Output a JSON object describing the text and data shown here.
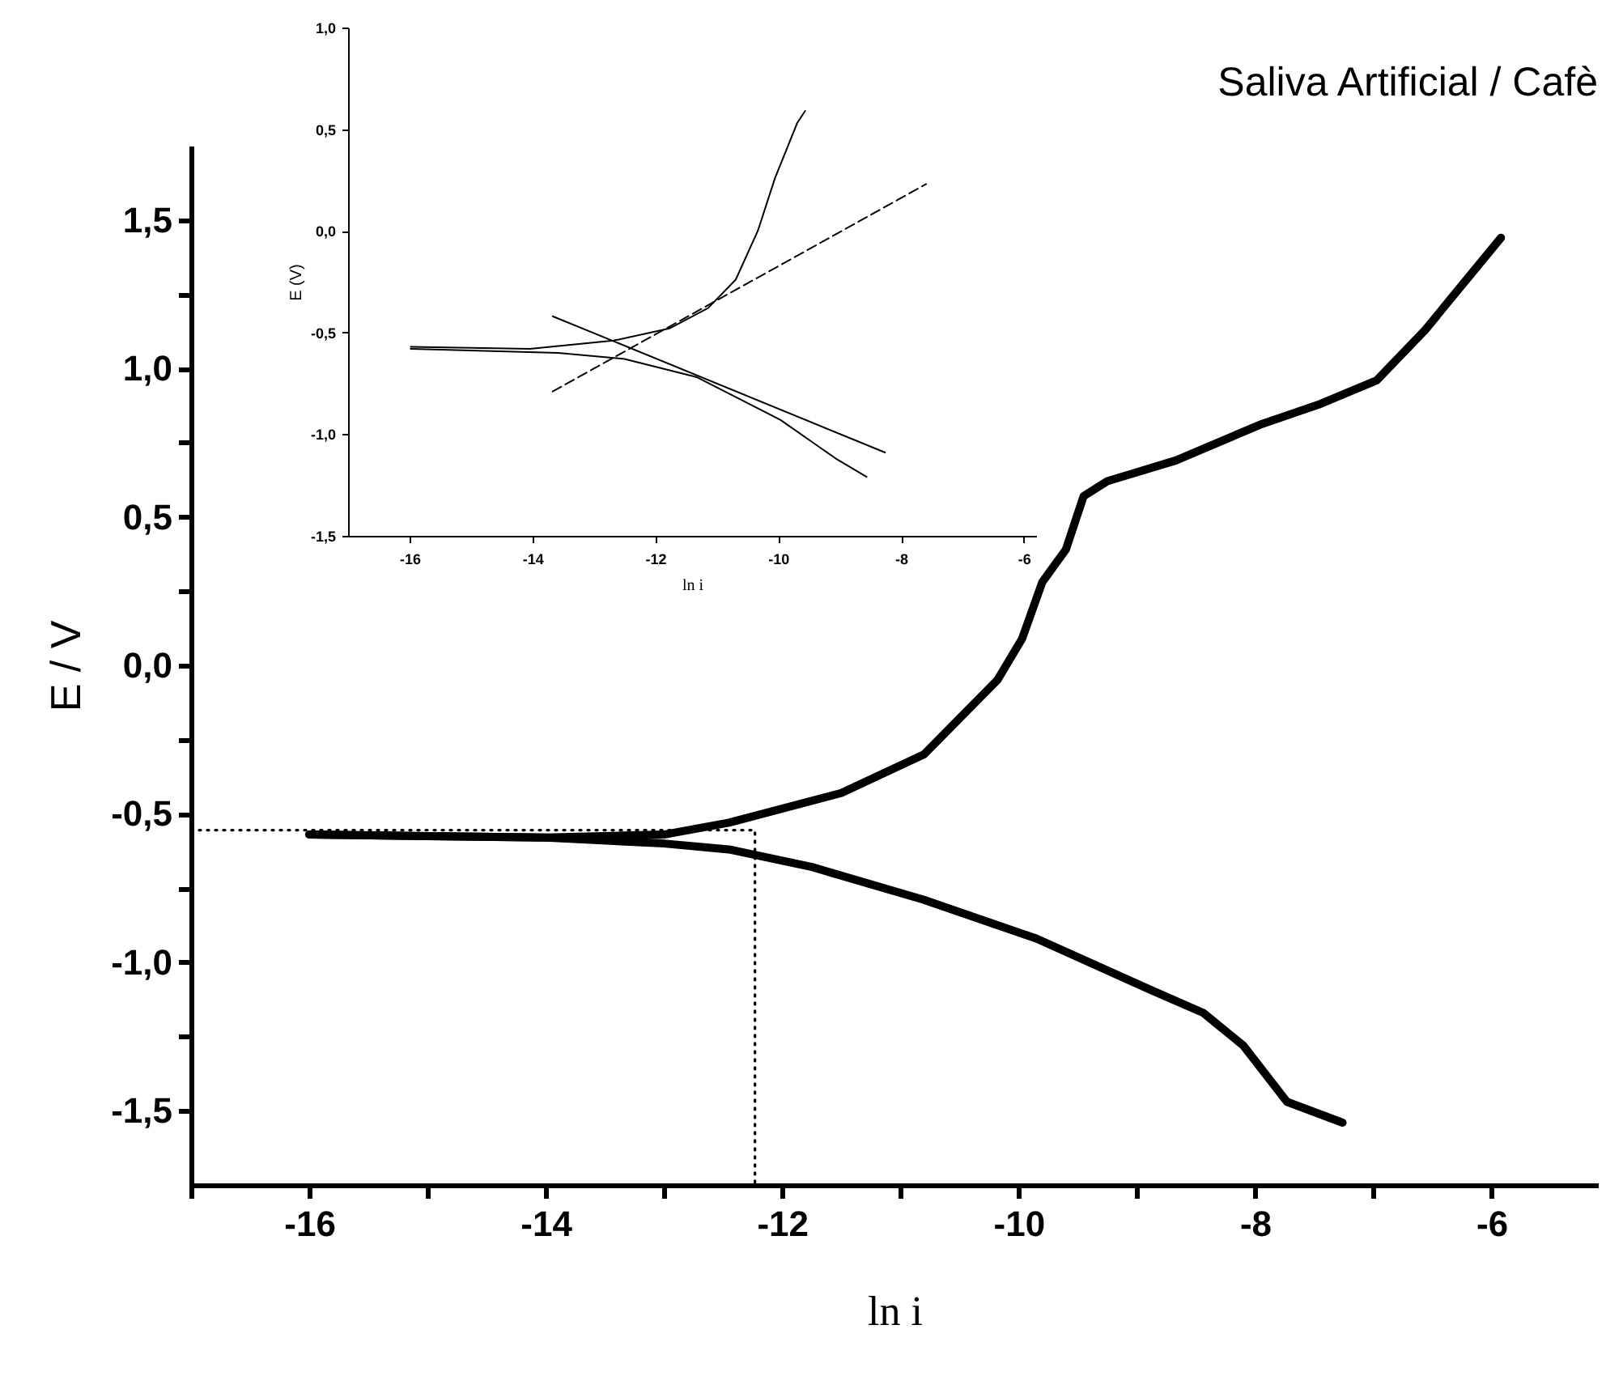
{
  "chart_data": [
    {
      "type": "line",
      "title": "Saliva Artificial / Cafè",
      "xlabel": "ln i",
      "ylabel": "E / V",
      "xlim": [
        -17,
        -5.1
      ],
      "ylim": [
        -1.75,
        1.75
      ],
      "xticks": [
        {
          "value": -17,
          "label": null
        },
        {
          "value": -16,
          "label": "-16"
        },
        {
          "value": -15,
          "label": null
        },
        {
          "value": -14,
          "label": "-14"
        },
        {
          "value": -13,
          "label": null
        },
        {
          "value": -12,
          "label": "-12"
        },
        {
          "value": -11,
          "label": null
        },
        {
          "value": -10,
          "label": "-10"
        },
        {
          "value": -9,
          "label": null
        },
        {
          "value": -8,
          "label": "-8"
        },
        {
          "value": -7,
          "label": null
        },
        {
          "value": -6,
          "label": "-6"
        }
      ],
      "yticks": [
        {
          "value": -1.5,
          "label": "-1,5"
        },
        {
          "value": -1.25,
          "label": null
        },
        {
          "value": -1,
          "label": "-1,0"
        },
        {
          "value": -0.75,
          "label": null
        },
        {
          "value": -0.5,
          "label": "-0,5"
        },
        {
          "value": -0.25,
          "label": null
        },
        {
          "value": 0,
          "label": "0,0"
        },
        {
          "value": 0.25,
          "label": null
        },
        {
          "value": 0.5,
          "label": "0,5"
        },
        {
          "value": 0.75,
          "label": null
        },
        {
          "value": 1,
          "label": "1,0"
        },
        {
          "value": 1.25,
          "label": null
        },
        {
          "value": 1.5,
          "label": "1,5"
        }
      ],
      "series": [
        {
          "color": "#000000",
          "line_style": "solid",
          "x": [
            -16,
            -14,
            -13,
            -12.45,
            -11.5,
            -10.8,
            -10.18,
            -9.97,
            -9.8,
            -9.6,
            -9.45,
            -9.25,
            -8.67,
            -7.96,
            -7.45,
            -6.97,
            -6.56,
            -5.92
          ],
          "values": [
            -0.57,
            -0.58,
            -0.57,
            -0.53,
            -0.43,
            -0.3,
            -0.05,
            0.09,
            0.28,
            0.39,
            0.57,
            0.62,
            0.69,
            0.81,
            0.88,
            0.96,
            1.13,
            1.44
          ]
        },
        {
          "color": "#000000",
          "line_style": "solid",
          "x": [
            -16,
            -14,
            -13,
            -12.45,
            -11.74,
            -10.8,
            -9.85,
            -8.9,
            -8.44,
            -8.1,
            -7.73,
            -7.26
          ],
          "values": [
            -0.57,
            -0.58,
            -0.6,
            -0.62,
            -0.68,
            -0.79,
            -0.92,
            -1.09,
            -1.17,
            -1.28,
            -1.47,
            -1.54
          ]
        },
        {
          "color": "#000000",
          "line_style": "dotted",
          "x": [
            -17,
            -12.23,
            -12.23
          ],
          "values": [
            -0.555,
            -0.555,
            -1.75
          ]
        }
      ]
    },
    {
      "type": "line",
      "xlabel": "ln i",
      "ylabel": "E (V)",
      "xlim": [
        -17,
        -5.8
      ],
      "ylim": [
        -1.5,
        1
      ],
      "xticks": [
        -16,
        -14,
        -12,
        -10,
        -8,
        -6
      ],
      "yticks": [
        {
          "value": -1.5,
          "label": "-1,5"
        },
        {
          "value": -1,
          "label": "-1,0"
        },
        {
          "value": -0.5,
          "label": "-0,5"
        },
        {
          "value": 0,
          "label": "0,0"
        },
        {
          "value": 0.5,
          "label": "0,5"
        },
        {
          "value": 1,
          "label": "1,0"
        }
      ],
      "series": [
        {
          "color": "#000000",
          "line_style": "solid",
          "x": [
            -15.98,
            -14.04,
            -12.68,
            -11.77,
            -11.14,
            -10.69,
            -10.33,
            -10.05,
            -9.69,
            -9.56
          ],
          "values": [
            -0.57,
            -0.58,
            -0.54,
            -0.48,
            -0.38,
            -0.24,
            0.0,
            0.26,
            0.53,
            0.59
          ]
        },
        {
          "color": "#000000",
          "line_style": "solid",
          "x": [
            -15.98,
            -13.58,
            -12.5,
            -11.32,
            -9.96,
            -9.06,
            -8.56
          ],
          "values": [
            -0.58,
            -0.6,
            -0.63,
            -0.72,
            -0.93,
            -1.12,
            -1.21
          ]
        },
        {
          "color": "#000000",
          "line_style": "dashed",
          "x": [
            -13.67,
            -7.59
          ],
          "values": [
            -0.79,
            0.23
          ]
        },
        {
          "color": "#000000",
          "line_style": "solid",
          "x": [
            -13.67,
            -8.26
          ],
          "values": [
            -0.42,
            -1.09
          ]
        }
      ]
    }
  ]
}
